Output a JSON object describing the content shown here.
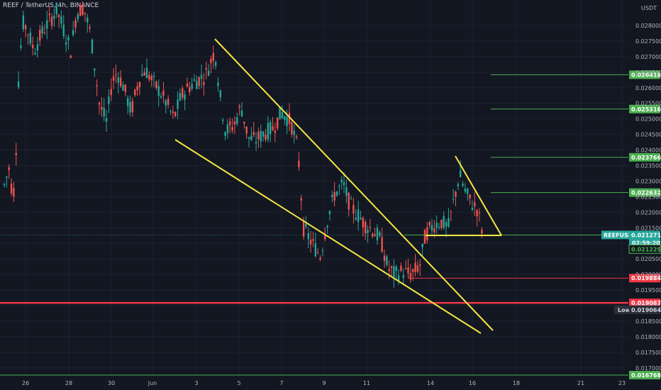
{
  "header": {
    "symbol": "REEF / TetherUS, 4h, BINANCE",
    "currency": "USDT"
  },
  "chart_data": {
    "type": "candlestick",
    "x_labels": [
      "26",
      "28",
      "30",
      "Jun",
      "3",
      "5",
      "7",
      "9",
      "11",
      "14",
      "16",
      "18",
      "21",
      "23"
    ],
    "y_ticks": [
      "0.028000",
      "0.027500",
      "0.027000",
      "0.026500",
      "0.026000",
      "0.025500",
      "0.025000",
      "0.024500",
      "0.024000",
      "0.023500",
      "0.023000",
      "0.022500",
      "0.022000",
      "0.021500",
      "0.021000",
      "0.020500",
      "0.020000",
      "0.019500",
      "0.019000",
      "0.018500",
      "0.018000",
      "0.017500",
      "0.017000"
    ],
    "ylim": [
      0.0166,
      0.029
    ],
    "grid": true,
    "colors": {
      "up": "#26a69a",
      "down": "#ef5350",
      "trend": "#f5e642",
      "support": "#4caf50",
      "resistance": "#f23645"
    },
    "horizontal_levels": [
      {
        "value": 0.026418,
        "label": "0.026418",
        "color": "#4caf50"
      },
      {
        "value": 0.025316,
        "label": "0.025316",
        "color": "#4caf50"
      },
      {
        "value": 0.023766,
        "label": "0.023766",
        "color": "#4caf50"
      },
      {
        "value": 0.022632,
        "label": "0.022632",
        "color": "#4caf50"
      },
      {
        "value": 0.019884,
        "label": "0.019884",
        "color": "#f23645"
      },
      {
        "value": 0.019087,
        "label": "0.019087",
        "color": "#f23645"
      },
      {
        "value": 0.016768,
        "label": "0.016768",
        "color": "#4caf50"
      }
    ],
    "price_tags": {
      "current": {
        "name": "REEFUSDT",
        "value": 0.021271,
        "label": "0.021271",
        "countdown": "02:59:20"
      },
      "other": {
        "value": 0.021229,
        "label": "0.021229"
      },
      "low": {
        "name": "Low",
        "value": 0.019064,
        "label": "0.019064"
      }
    }
  }
}
